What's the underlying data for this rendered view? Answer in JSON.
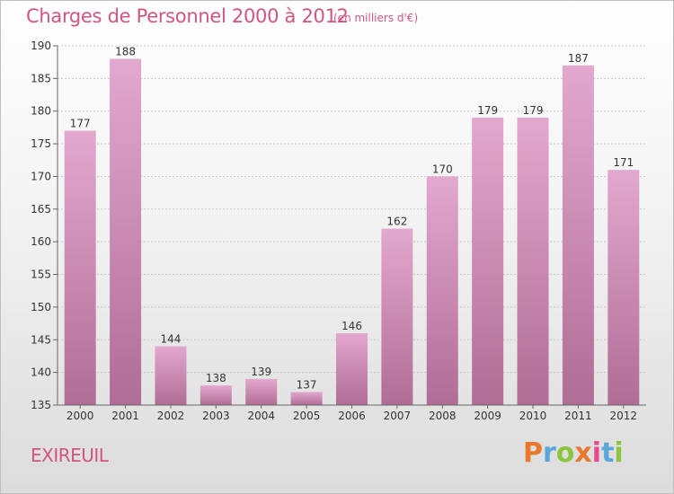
{
  "header": {
    "title": "Charges de Personnel 2000 à 2012",
    "subtitle": "(en milliers d'€)"
  },
  "footer": {
    "commune": "EXIREUIL",
    "logo_text": "Proxiti",
    "logo_colors": [
      "#e8792a",
      "#5aa6d8",
      "#8cc63f",
      "#e8792a",
      "#e84a8f",
      "#5aa6d8",
      "#8cc63f"
    ]
  },
  "colors": {
    "accent": "#d2557f",
    "bar_top": "#e3a8cf",
    "bar_bottom": "#b06d96"
  },
  "chart_data": {
    "type": "bar",
    "categories": [
      "2000",
      "2001",
      "2002",
      "2003",
      "2004",
      "2005",
      "2006",
      "2007",
      "2008",
      "2009",
      "2010",
      "2011",
      "2012"
    ],
    "values": [
      177,
      188,
      144,
      138,
      139,
      137,
      146,
      162,
      170,
      179,
      179,
      187,
      171
    ],
    "title": "Charges de Personnel 2000 à 2012",
    "subtitle": "(en milliers d'€)",
    "xlabel": "",
    "ylabel": "",
    "ylim": [
      135,
      190
    ],
    "yticks": [
      135,
      140,
      145,
      150,
      155,
      160,
      165,
      170,
      175,
      180,
      185,
      190
    ],
    "grid": true
  }
}
